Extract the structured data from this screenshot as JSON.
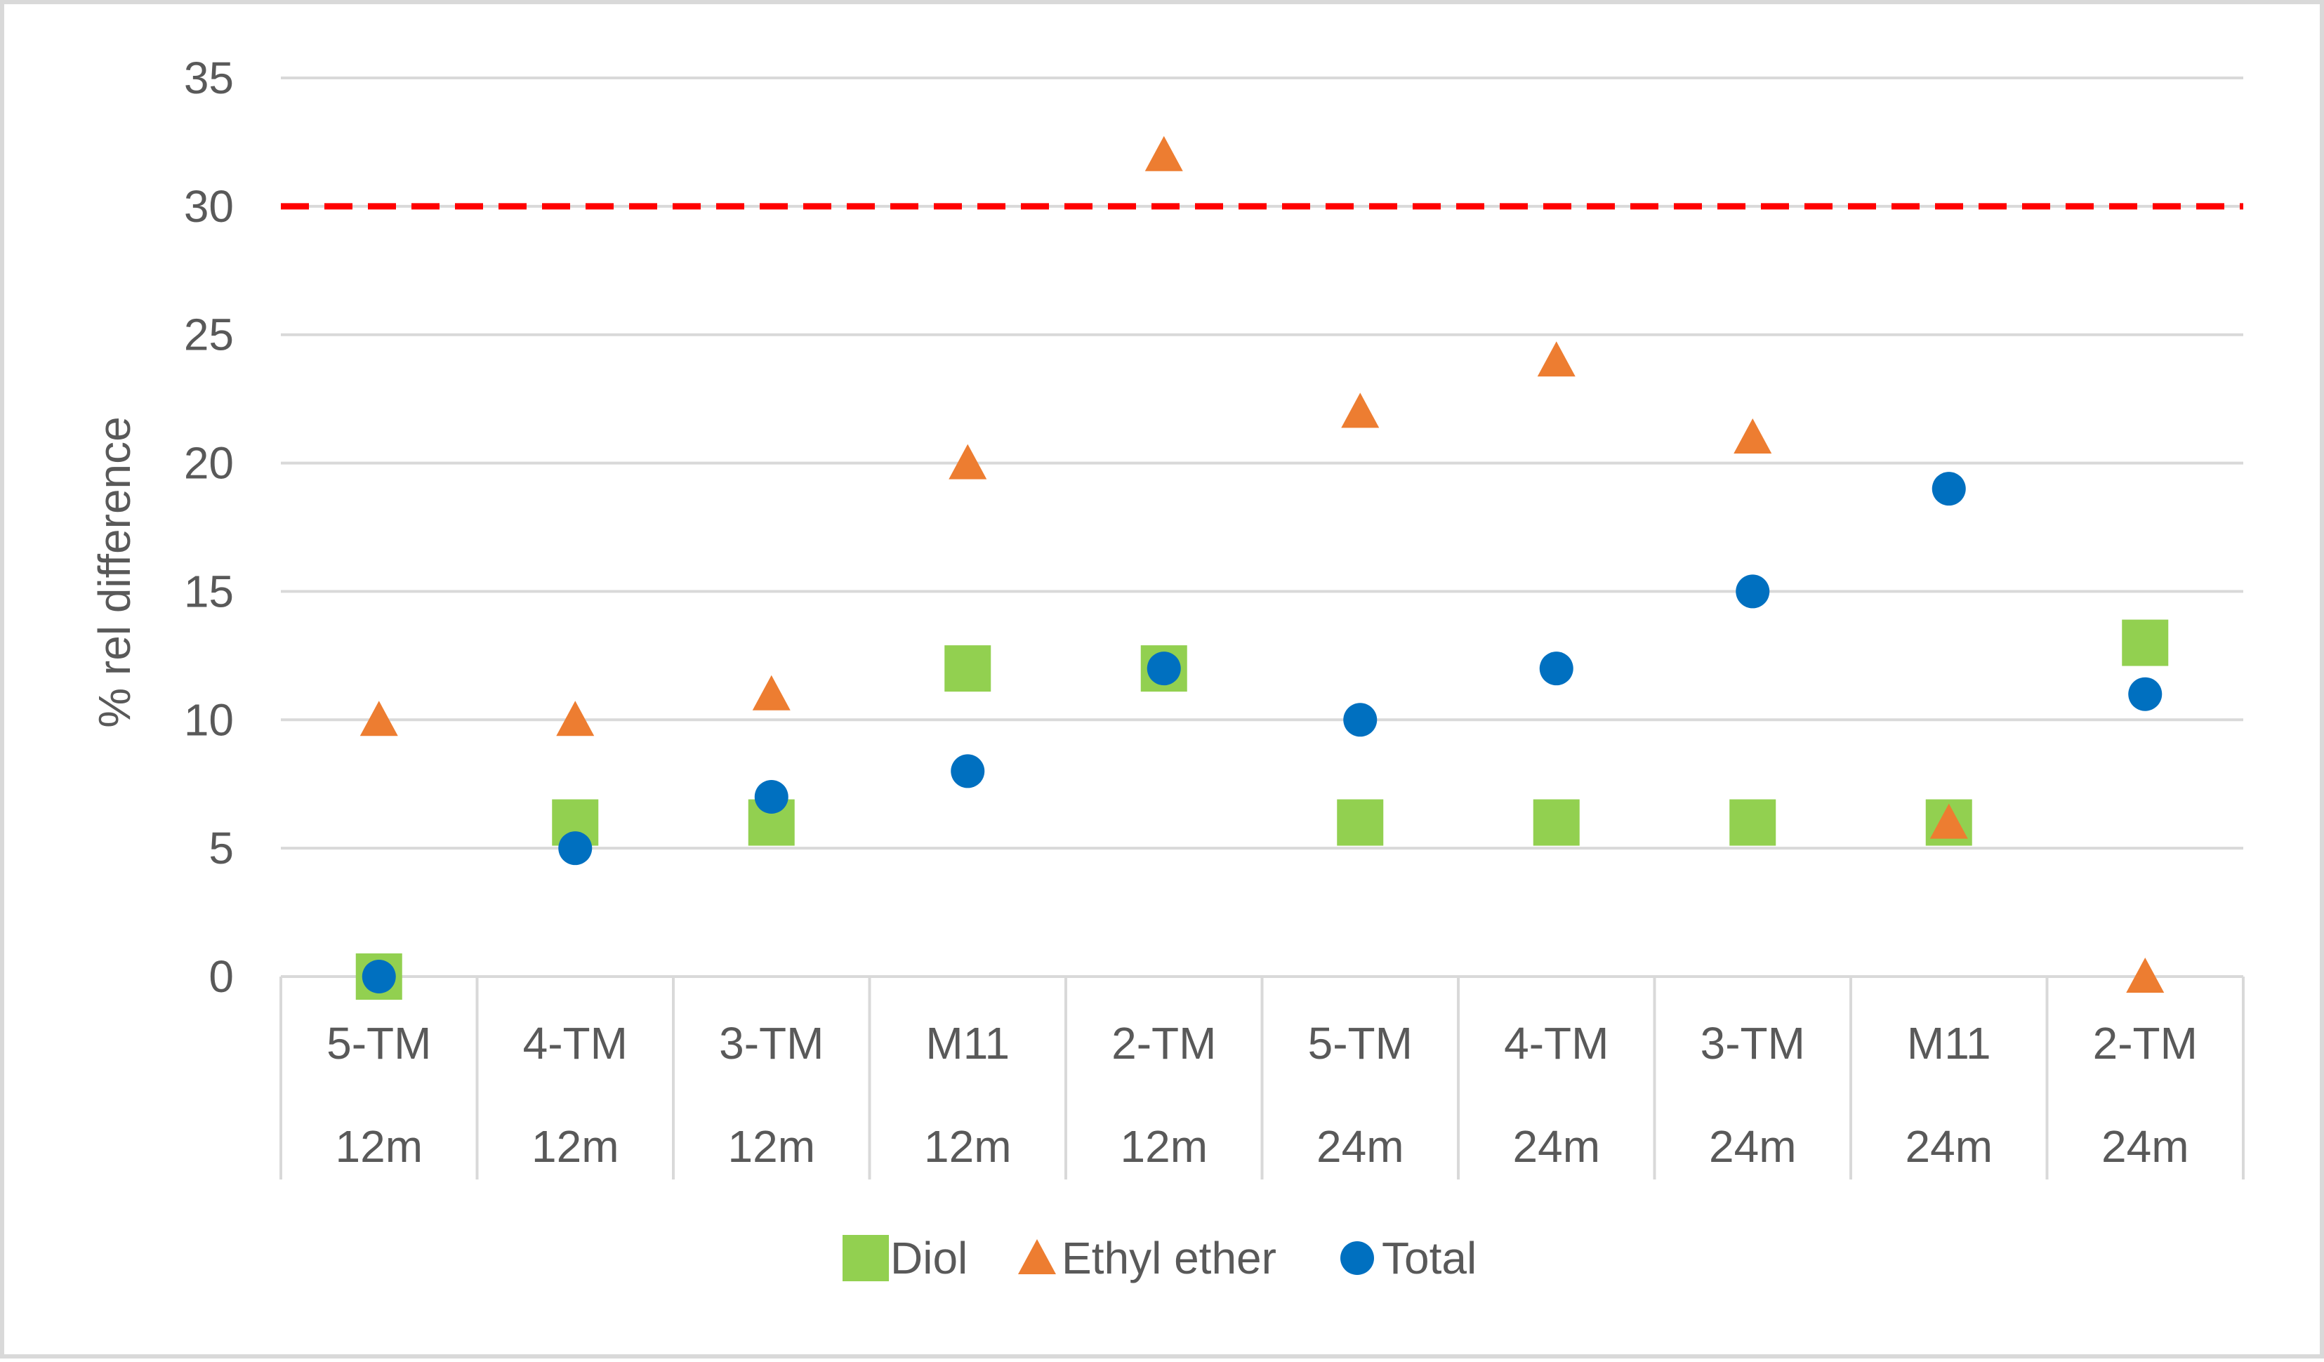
{
  "chart_data": {
    "type": "scatter",
    "title": "",
    "xlabel": "",
    "ylabel": "% rel difference",
    "ylim": [
      0,
      35
    ],
    "yticks": [
      0,
      5,
      10,
      15,
      20,
      25,
      30,
      35
    ],
    "grid": true,
    "legend_position": "bottom",
    "categories": [
      [
        "5-TM",
        "12m"
      ],
      [
        "4-TM",
        "12m"
      ],
      [
        "3-TM",
        "12m"
      ],
      [
        "M11",
        "12m"
      ],
      [
        "2-TM",
        "12m"
      ],
      [
        "5-TM",
        "24m"
      ],
      [
        "4-TM",
        "24m"
      ],
      [
        "3-TM",
        "24m"
      ],
      [
        "M11",
        "24m"
      ],
      [
        "2-TM",
        "24m"
      ]
    ],
    "series": [
      {
        "name": "Diol",
        "marker": "square",
        "color": "#92d050",
        "values": [
          0,
          6,
          6,
          12,
          12,
          6,
          6,
          6,
          6,
          13
        ]
      },
      {
        "name": "Ethyl ether",
        "marker": "triangle",
        "color": "#ed7d31",
        "values": [
          10,
          10,
          11,
          20,
          32,
          22,
          24,
          21,
          6,
          0
        ]
      },
      {
        "name": "Total",
        "marker": "circle",
        "color": "#0070c0",
        "values": [
          0,
          5,
          7,
          8,
          12,
          10,
          12,
          15,
          19,
          11
        ]
      }
    ],
    "reference_line": {
      "value": 30,
      "color": "#ff0000",
      "style": "dashed"
    }
  }
}
